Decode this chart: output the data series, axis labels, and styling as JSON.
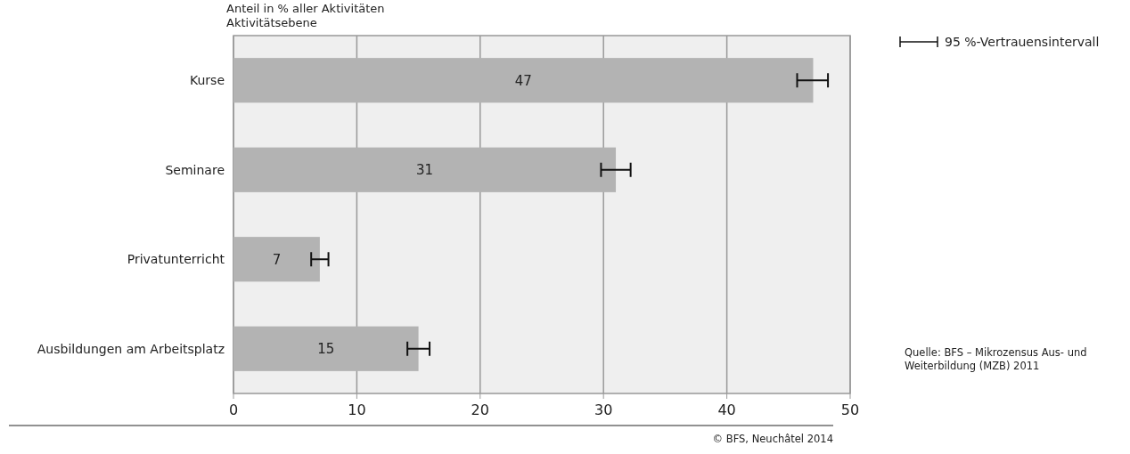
{
  "chart_data": {
    "type": "bar",
    "orientation": "horizontal",
    "xlabel": "Anteil in % aller Aktivitäten",
    "ylabel": "Aktivitätsebene",
    "categories": [
      "Kurse",
      "Seminare",
      "Privatunterricht",
      "Ausbildungen am Arbeitsplatz"
    ],
    "values": [
      47,
      31,
      7,
      15
    ],
    "color": "#b3b3b3",
    "errors": [
      [
        45.7,
        48.2
      ],
      [
        29.8,
        32.2
      ],
      [
        6.3,
        7.7
      ],
      [
        14.1,
        15.9
      ]
    ],
    "xlim": [
      0,
      50
    ],
    "xticks": [
      0,
      10,
      20,
      30,
      40,
      50
    ],
    "grid": "x",
    "data_labels": true,
    "legend_title": "95 %-Vertrauensintervall",
    "annotations": [
      "Quelle: BFS – Mikrozensus Aus- und Weiterbildung (MZB) 2011",
      "© BFS, Neuchâtel 2014"
    ]
  }
}
